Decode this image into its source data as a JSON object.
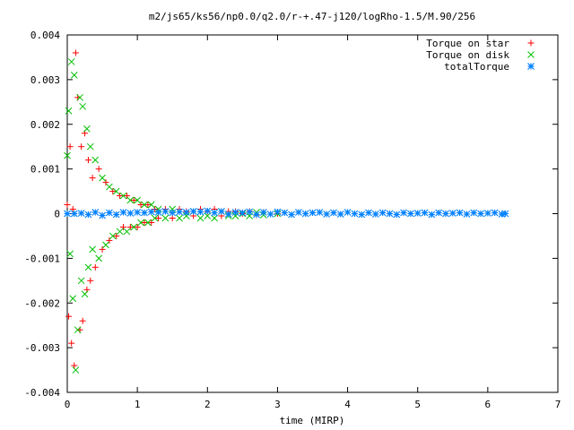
{
  "chart_data": {
    "type": "scatter",
    "title": "m2/js65/ks56/np0.0/q2.0/r-+.47-j120/logRho-1.5/M.90/256",
    "xlabel": "time (MIRP)",
    "ylabel": "",
    "xlim": [
      0,
      7
    ],
    "ylim": [
      -0.004,
      0.004
    ],
    "x_ticks": [
      "0",
      "1",
      "2",
      "3",
      "4",
      "5",
      "6",
      "7"
    ],
    "y_ticks": [
      "-0.004",
      "-0.003",
      "-0.002",
      "-0.001",
      "0",
      "0.001",
      "0.002",
      "0.003",
      "0.004"
    ],
    "grid": false,
    "legend_position": "top-right",
    "colors": {
      "star": "#ff0000",
      "disk": "#00c000",
      "total": "#0080ff"
    },
    "series": [
      {
        "name": "Torque on star",
        "marker": "plus",
        "color": "#ff0000",
        "x": [
          0,
          0.02,
          0.04,
          0.06,
          0.08,
          0.1,
          0.12,
          0.15,
          0.18,
          0.2,
          0.22,
          0.25,
          0.28,
          0.3,
          0.33,
          0.36,
          0.4,
          0.45,
          0.5,
          0.55,
          0.6,
          0.65,
          0.7,
          0.75,
          0.8,
          0.85,
          0.9,
          0.95,
          1.0,
          1.05,
          1.1,
          1.15,
          1.2,
          1.25,
          1.3,
          1.4,
          1.5,
          1.6,
          1.7,
          1.8,
          1.9,
          2.0,
          2.1,
          2.2,
          2.3,
          2.4,
          2.5,
          2.6,
          2.7,
          2.8,
          3.0
        ],
        "y": [
          0.0002,
          -0.0023,
          0.0015,
          -0.0029,
          0.0001,
          -0.0034,
          0.0036,
          0.0026,
          -0.0026,
          0.0015,
          -0.0024,
          0.0018,
          -0.0017,
          0.0012,
          -0.0015,
          0.0008,
          -0.0012,
          0.001,
          -0.0008,
          0.0007,
          -0.0006,
          0.0005,
          -0.0005,
          0.0004,
          -0.0003,
          0.0004,
          -0.0003,
          0.0003,
          -0.0003,
          0.0002,
          -0.0002,
          0.0002,
          -0.0002,
          0.0001,
          -0.0001,
          0.0001,
          -0.0001,
          0.0001,
          5e-05,
          -5e-05,
          0.0001,
          5e-05,
          0.0001,
          -5e-05,
          5e-05,
          5e-05,
          0.0,
          5e-05,
          -3e-05,
          3e-05,
          0.0
        ]
      },
      {
        "name": "Torque on disk",
        "marker": "cross",
        "color": "#00c000",
        "x": [
          0,
          0.02,
          0.04,
          0.06,
          0.08,
          0.1,
          0.12,
          0.15,
          0.18,
          0.2,
          0.22,
          0.25,
          0.28,
          0.3,
          0.33,
          0.36,
          0.4,
          0.45,
          0.5,
          0.55,
          0.6,
          0.65,
          0.7,
          0.75,
          0.8,
          0.85,
          0.9,
          0.95,
          1.0,
          1.05,
          1.1,
          1.15,
          1.2,
          1.25,
          1.3,
          1.4,
          1.5,
          1.6,
          1.7,
          1.8,
          1.9,
          2.0,
          2.1,
          2.2,
          2.3,
          2.4,
          2.5,
          2.6,
          2.7,
          2.8,
          3.0
        ],
        "y": [
          0.0013,
          0.0023,
          -0.0009,
          0.0034,
          -0.0019,
          0.0031,
          -0.0035,
          -0.0026,
          0.0026,
          -0.0015,
          0.0024,
          -0.0018,
          0.0019,
          -0.0012,
          0.0015,
          -0.0008,
          0.0012,
          -0.001,
          0.0008,
          -0.0007,
          0.0006,
          -0.0005,
          0.0005,
          -0.0004,
          0.0004,
          -0.0004,
          0.0003,
          -0.0003,
          0.0003,
          -0.0002,
          0.0002,
          -0.0002,
          0.0002,
          -0.0001,
          0.0001,
          -0.0001,
          0.0001,
          -0.0001,
          -5e-05,
          5e-05,
          -0.0001,
          -5e-05,
          -0.0001,
          5e-05,
          -5e-05,
          -5e-05,
          0.0,
          -5e-05,
          3e-05,
          -3e-05,
          0.0
        ]
      },
      {
        "name": "totalTorque",
        "marker": "star",
        "color": "#0080ff",
        "x": [
          0,
          0.1,
          0.2,
          0.3,
          0.4,
          0.5,
          0.6,
          0.7,
          0.8,
          0.9,
          1.0,
          1.1,
          1.2,
          1.3,
          1.4,
          1.5,
          1.6,
          1.7,
          1.8,
          1.9,
          2.0,
          2.1,
          2.2,
          2.3,
          2.4,
          2.5,
          2.6,
          2.7,
          2.8,
          2.9,
          3.0,
          3.1,
          3.2,
          3.3,
          3.4,
          3.5,
          3.6,
          3.7,
          3.8,
          3.9,
          4.0,
          4.1,
          4.2,
          4.3,
          4.4,
          4.5,
          4.6,
          4.7,
          4.8,
          4.9,
          5.0,
          5.1,
          5.2,
          5.3,
          5.4,
          5.5,
          5.6,
          5.7,
          5.8,
          5.9,
          6.0,
          6.1,
          6.2,
          6.25
        ],
        "y": [
          0.0,
          0.0,
          1e-05,
          -2e-05,
          3e-05,
          -4e-05,
          2e-05,
          -2e-05,
          3e-05,
          1e-05,
          3e-05,
          2e-05,
          4e-05,
          3e-05,
          5e-05,
          2e-05,
          4e-05,
          3e-05,
          5e-05,
          4e-05,
          6e-05,
          2e-05,
          5e-05,
          -1e-05,
          3e-05,
          2e-05,
          4e-05,
          -2e-05,
          3e-05,
          -1e-05,
          4e-05,
          2e-05,
          -2e-05,
          3e-05,
          0.0,
          2e-05,
          3e-05,
          -1e-05,
          2e-05,
          -1e-05,
          3e-05,
          0.0,
          -2e-05,
          2e-05,
          -1e-05,
          2e-05,
          0.0,
          -2e-05,
          2e-05,
          0.0,
          1e-05,
          2e-05,
          -2e-05,
          2e-05,
          0.0,
          1e-05,
          2e-05,
          -1e-05,
          2e-05,
          0.0,
          1e-05,
          2e-05,
          -1e-05,
          0.0
        ]
      }
    ]
  }
}
